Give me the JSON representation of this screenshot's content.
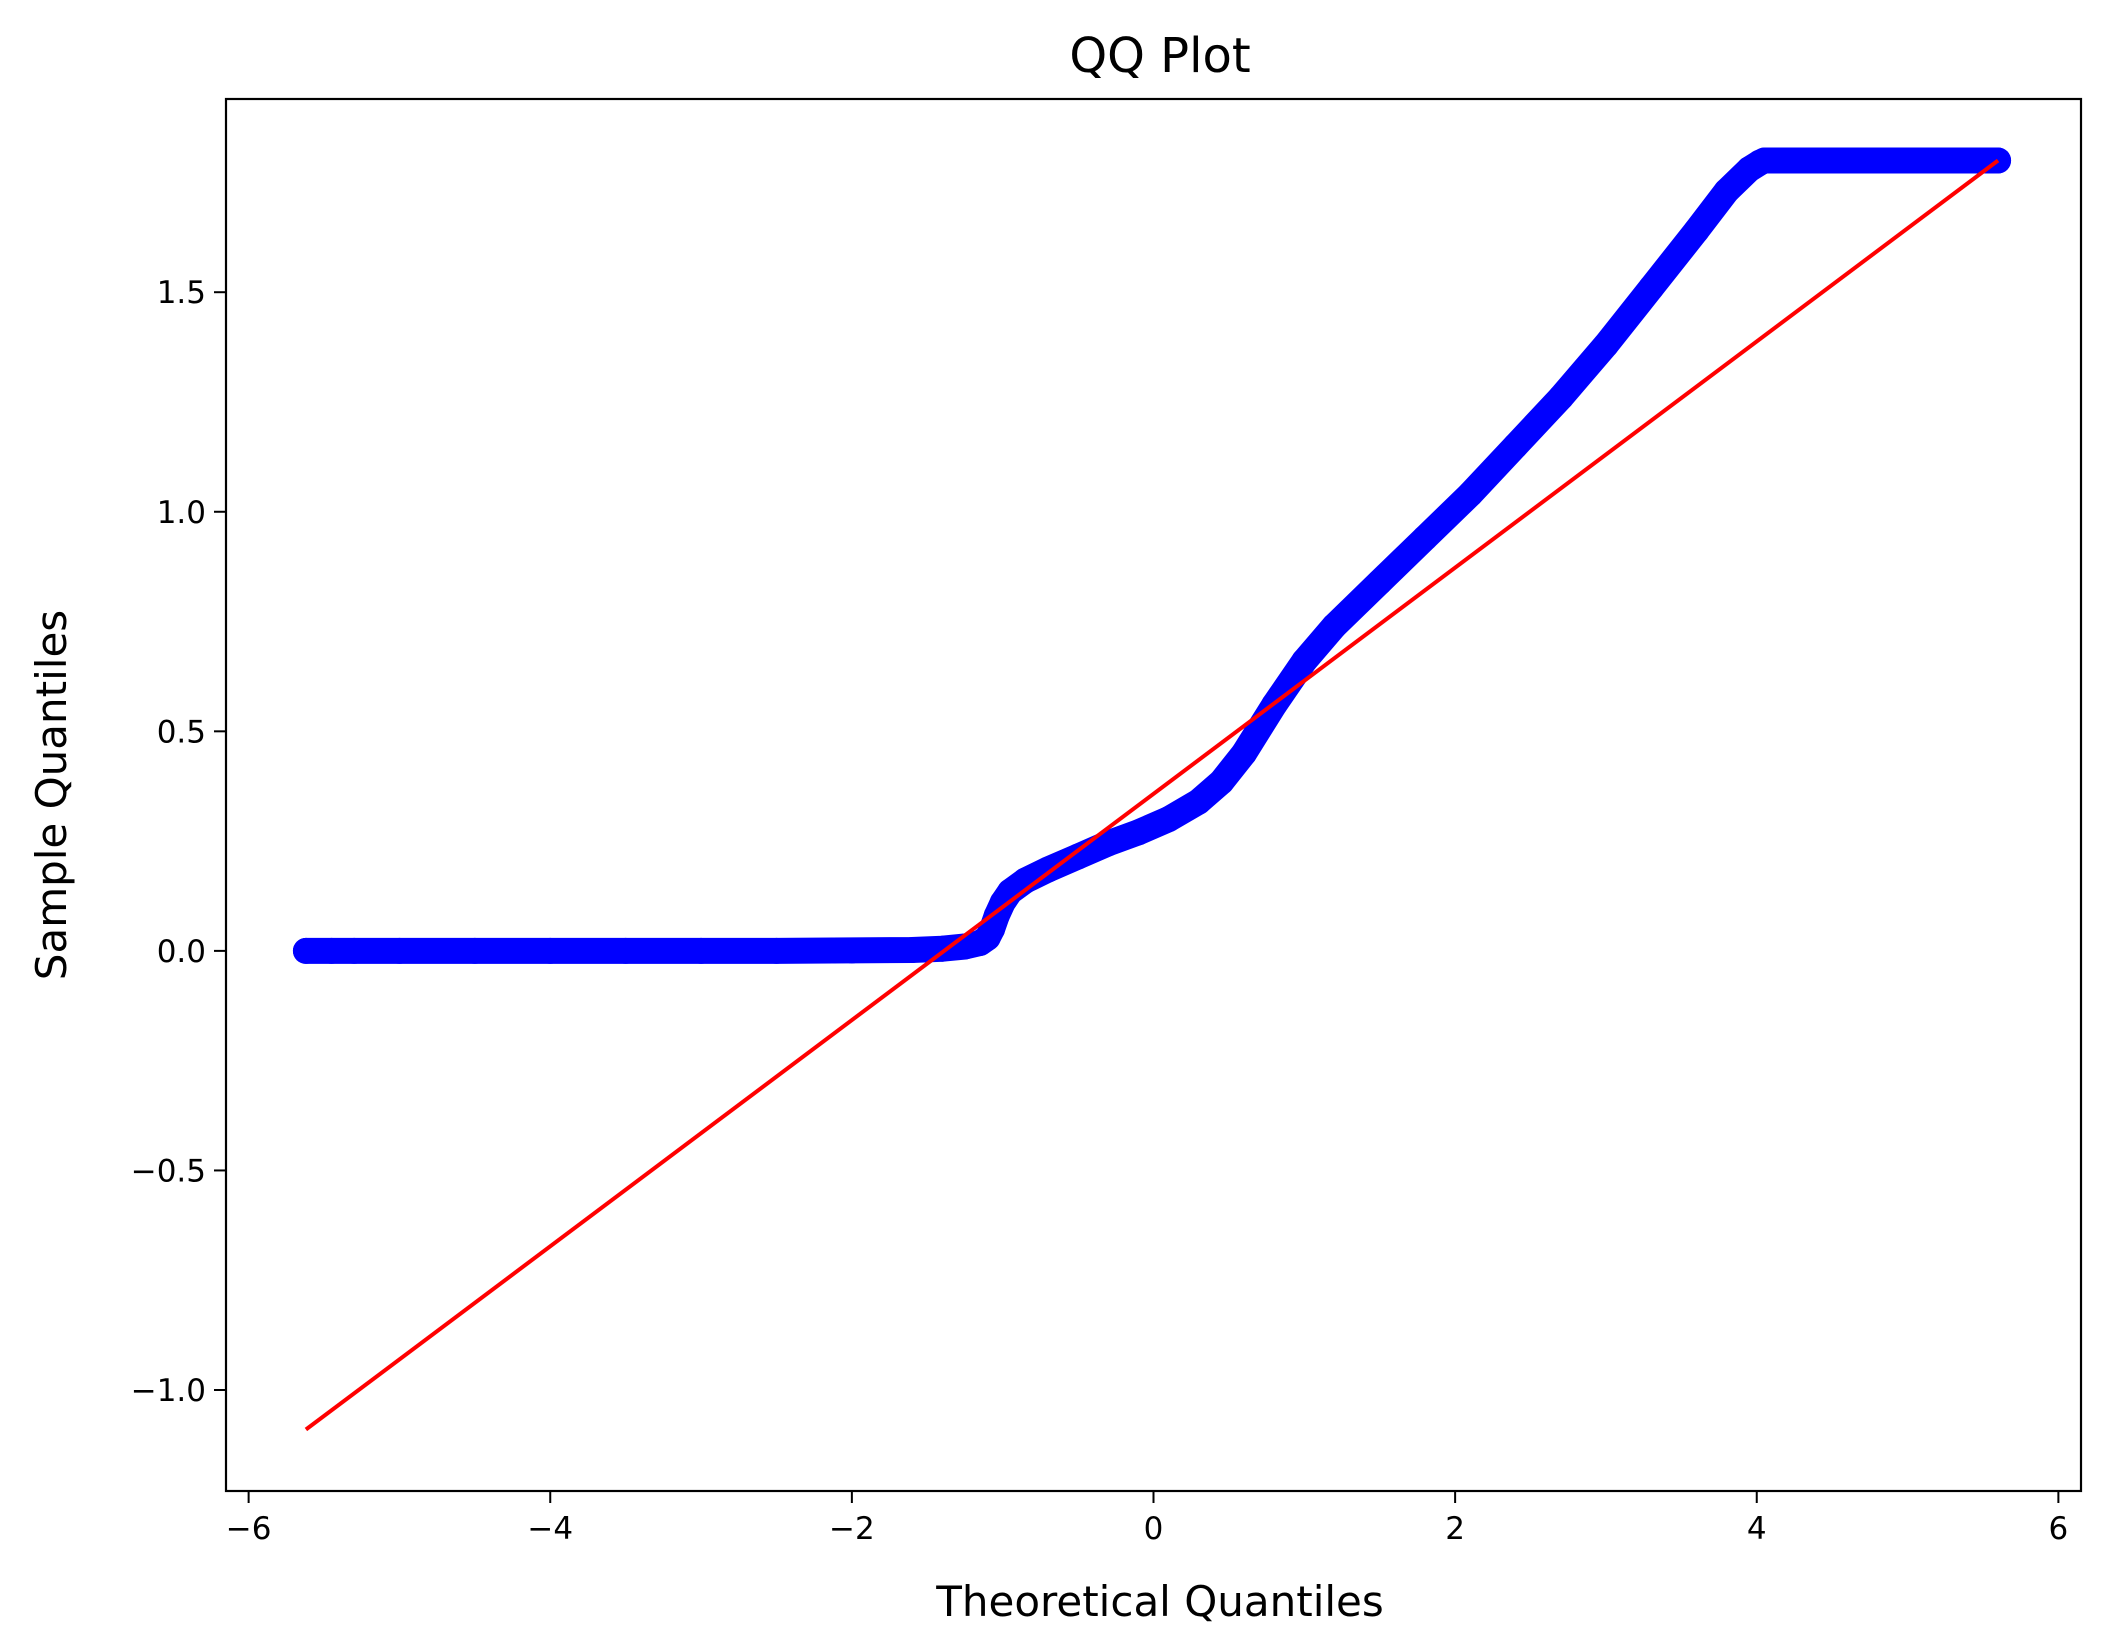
{
  "chart_data": {
    "type": "scatter",
    "title": "QQ Plot",
    "xlabel": "Theoretical Quantiles",
    "ylabel": "Sample Quantiles",
    "xlim": [
      -6.15,
      6.15
    ],
    "ylim": [
      -1.23,
      1.94
    ],
    "xticks": [
      -6,
      -4,
      -2,
      0,
      2,
      4,
      6
    ],
    "xtick_labels": [
      "−6",
      "−4",
      "−2",
      "0",
      "2",
      "4",
      "6"
    ],
    "yticks": [
      -1.0,
      -0.5,
      0.0,
      0.5,
      1.0,
      1.5
    ],
    "ytick_labels": [
      "−1.0",
      "−0.5",
      "0.0",
      "0.5",
      "1.0",
      "1.5"
    ],
    "grid": false,
    "colors": {
      "points": "#0000ff",
      "reference_line": "#ff0000",
      "axes": "#000000"
    },
    "series": [
      {
        "kind": "points",
        "x": [
          -5.62,
          -5.45,
          -5.3,
          -5.0,
          -4.5,
          -4.0,
          -3.5,
          -3.0,
          -2.5,
          -2.0,
          -1.6,
          -1.4,
          -1.25,
          -1.15,
          -1.1,
          -1.07,
          -1.04,
          -1.0,
          -0.95,
          -0.85,
          -0.7,
          -0.5,
          -0.3,
          -0.1,
          0.1,
          0.3,
          0.45,
          0.6,
          0.8,
          1.0,
          1.2,
          1.5,
          1.8,
          2.1,
          2.4,
          2.7,
          3.0,
          3.3,
          3.6,
          3.8,
          3.95,
          4.02,
          4.05,
          4.2,
          4.6,
          5.0,
          5.4,
          5.48,
          5.6
        ],
        "y": [
          0.0,
          0.0,
          0.0,
          0.0,
          0.0,
          0.0,
          0.0,
          0.0,
          0.0,
          0.001,
          0.002,
          0.005,
          0.01,
          0.018,
          0.03,
          0.05,
          0.08,
          0.11,
          0.135,
          0.16,
          0.185,
          0.215,
          0.245,
          0.27,
          0.3,
          0.34,
          0.385,
          0.45,
          0.56,
          0.66,
          0.74,
          0.84,
          0.94,
          1.04,
          1.15,
          1.26,
          1.38,
          1.51,
          1.64,
          1.73,
          1.78,
          1.795,
          1.8,
          1.8,
          1.8,
          1.8,
          1.8,
          1.8,
          1.8
        ]
      },
      {
        "kind": "reference-line",
        "x": [
          -5.62,
          5.6
        ],
        "y": [
          -1.09,
          1.8
        ]
      }
    ]
  }
}
